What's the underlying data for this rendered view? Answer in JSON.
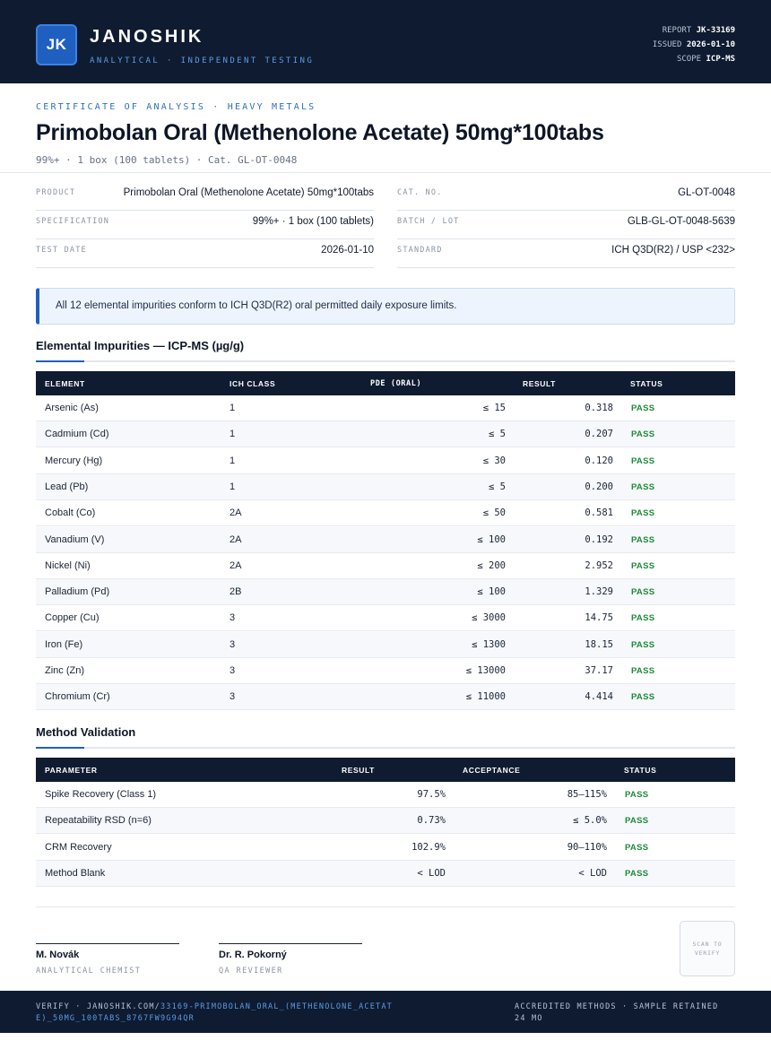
{
  "header": {
    "logo_initials": "JK",
    "brand_name": "JANOSHIK",
    "brand_sub": "ANALYTICAL · INDEPENDENT TESTING",
    "meta": [
      {
        "label": "REPORT",
        "value": "JK-33169"
      },
      {
        "label": "ISSUED",
        "value": "2026-01-10"
      },
      {
        "label": "SCOPE",
        "value": "ICP-MS"
      }
    ]
  },
  "title_block": {
    "eyebrow": "CERTIFICATE OF ANALYSIS · HEAVY METALS",
    "title": "Primobolan Oral (Methenolone Acetate) 50mg*100tabs",
    "subtitle": "99%+ · 1 box (100 tablets)  ·  Cat. GL-OT-0048"
  },
  "details": {
    "left": [
      {
        "label": "PRODUCT",
        "value": "Primobolan Oral (Methenolone Acetate) 50mg*100tabs"
      },
      {
        "label": "SPECIFICATION",
        "value": "99%+ · 1 box (100 tablets)"
      },
      {
        "label": "TEST DATE",
        "value": "2026-01-10"
      }
    ],
    "right": [
      {
        "label": "CAT. NO.",
        "value": "GL-OT-0048"
      },
      {
        "label": "BATCH / LOT",
        "value": "GLB-GL-OT-0048-5639"
      },
      {
        "label": "STANDARD",
        "value": "ICH Q3D(R2) / USP <232>"
      }
    ]
  },
  "notice": "All 12 elemental impurities conform to ICH Q3D(R2) oral permitted daily exposure limits.",
  "impurities": {
    "title": "Elemental Impurities — ICP-MS (µg/g)",
    "headers": {
      "element": "ELEMENT",
      "ich_class": "ICH CLASS",
      "pde": "PDE (ORAL)",
      "result": "RESULT",
      "status": "STATUS"
    },
    "rows": [
      {
        "element": "Arsenic (As)",
        "ich_class": "1",
        "pde": "≤ 15",
        "result": "0.318",
        "status": "PASS"
      },
      {
        "element": "Cadmium (Cd)",
        "ich_class": "1",
        "pde": "≤ 5",
        "result": "0.207",
        "status": "PASS"
      },
      {
        "element": "Mercury (Hg)",
        "ich_class": "1",
        "pde": "≤ 30",
        "result": "0.120",
        "status": "PASS"
      },
      {
        "element": "Lead (Pb)",
        "ich_class": "1",
        "pde": "≤ 5",
        "result": "0.200",
        "status": "PASS"
      },
      {
        "element": "Cobalt (Co)",
        "ich_class": "2A",
        "pde": "≤ 50",
        "result": "0.581",
        "status": "PASS"
      },
      {
        "element": "Vanadium (V)",
        "ich_class": "2A",
        "pde": "≤ 100",
        "result": "0.192",
        "status": "PASS"
      },
      {
        "element": "Nickel (Ni)",
        "ich_class": "2A",
        "pde": "≤ 200",
        "result": "2.952",
        "status": "PASS"
      },
      {
        "element": "Palladium (Pd)",
        "ich_class": "2B",
        "pde": "≤ 100",
        "result": "1.329",
        "status": "PASS"
      },
      {
        "element": "Copper (Cu)",
        "ich_class": "3",
        "pde": "≤ 3000",
        "result": "14.75",
        "status": "PASS"
      },
      {
        "element": "Iron (Fe)",
        "ich_class": "3",
        "pde": "≤ 1300",
        "result": "18.15",
        "status": "PASS"
      },
      {
        "element": "Zinc (Zn)",
        "ich_class": "3",
        "pde": "≤ 13000",
        "result": "37.17",
        "status": "PASS"
      },
      {
        "element": "Chromium (Cr)",
        "ich_class": "3",
        "pde": "≤ 11000",
        "result": "4.414",
        "status": "PASS"
      }
    ]
  },
  "validation": {
    "title": "Method Validation",
    "headers": {
      "parameter": "PARAMETER",
      "result": "RESULT",
      "acceptance": "ACCEPTANCE",
      "status": "STATUS"
    },
    "rows": [
      {
        "parameter": "Spike Recovery (Class 1)",
        "result": "97.5%",
        "acceptance": "85–115%",
        "status": "PASS"
      },
      {
        "parameter": "Repeatability RSD (n=6)",
        "result": "0.73%",
        "acceptance": "≤ 5.0%",
        "status": "PASS"
      },
      {
        "parameter": "CRM Recovery",
        "result": "102.9%",
        "acceptance": "90–110%",
        "status": "PASS"
      },
      {
        "parameter": "Method Blank",
        "result": "< LOD",
        "acceptance": "< LOD",
        "status": "PASS"
      }
    ]
  },
  "signatures": [
    {
      "name": "M. Novák",
      "role": "ANALYTICAL CHEMIST"
    },
    {
      "name": "Dr. R. Pokorný",
      "role": "QA REVIEWER"
    }
  ],
  "qr_label": "SCAN TO VERIFY",
  "footer": {
    "verify_prefix": "VERIFY · JANOSHIK.COM/",
    "verify_path": "33169-PRIMOBOLAN_ORAL_(METHENOLONE_ACETATE)_50MG_100TABS_8767FW9G94QR",
    "right": "ACCREDITED METHODS · SAMPLE RETAINED 24 MO"
  }
}
